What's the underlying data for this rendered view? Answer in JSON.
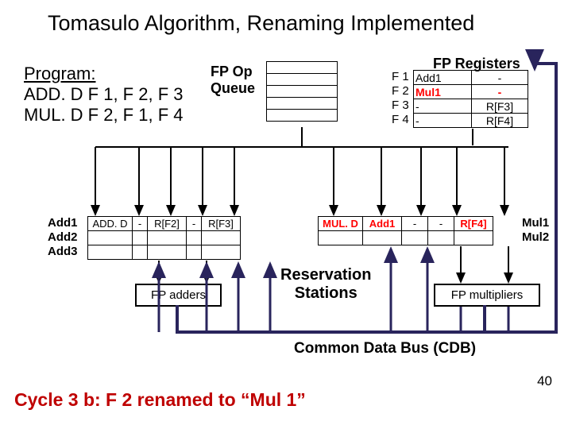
{
  "title": "Tomasulo Algorithm, Renaming Implemented",
  "program": {
    "title": "Program:",
    "lines": [
      "ADD. D  F 1, F 2, F 3",
      "MUL. D  F 2, F 1, F 4"
    ]
  },
  "fp_op_label": "FP Op\nQueue",
  "fp_registers": {
    "title": "FP Registers",
    "rows": [
      {
        "name": "F 1",
        "tag": "Add1",
        "val": "-"
      },
      {
        "name": "F 2",
        "tag": "Mul1",
        "val": "-"
      },
      {
        "name": "F 3",
        "tag": "-",
        "val": "R[F3]"
      },
      {
        "name": "F 4",
        "tag": "-",
        "val": "R[F4]"
      }
    ],
    "highlight_row": 1,
    "highlight_color": "#ff0000"
  },
  "add_rs": {
    "labels": [
      "Add1",
      "Add2",
      "Add3"
    ],
    "cols": [
      55,
      18,
      48,
      18,
      48
    ],
    "rows": [
      [
        "ADD. D",
        "-",
        "R[F2]",
        "-",
        "R[F3]"
      ],
      [
        "",
        "",
        "",
        "",
        ""
      ],
      [
        "",
        "",
        "",
        "",
        ""
      ]
    ]
  },
  "mul_rs": {
    "labels": [
      "Mul1",
      "Mul2"
    ],
    "cols": [
      55,
      48,
      32,
      32,
      48
    ],
    "rows": [
      [
        "MUL. D",
        "Add1",
        "-",
        "-",
        "R[F4]"
      ],
      [
        "",
        "",
        "",
        "",
        ""
      ]
    ],
    "highlight_cells": [
      [
        0,
        0
      ],
      [
        0,
        1
      ],
      [
        0,
        4
      ]
    ],
    "highlight_color": "#ff0000"
  },
  "fpadders": "FP adders",
  "fpmultipliers": "FP multipliers",
  "reservation_label": "Reservation\nStations",
  "cdb_label": "Common Data Bus (CDB)",
  "cycle_label": "Cycle 3 b: F 2 renamed to “Mul 1”",
  "slide_num": "40",
  "colors": {
    "black": "#000000",
    "purple_wire": "#29245c",
    "red": "#bf0000",
    "highlight": "#ff0000"
  }
}
